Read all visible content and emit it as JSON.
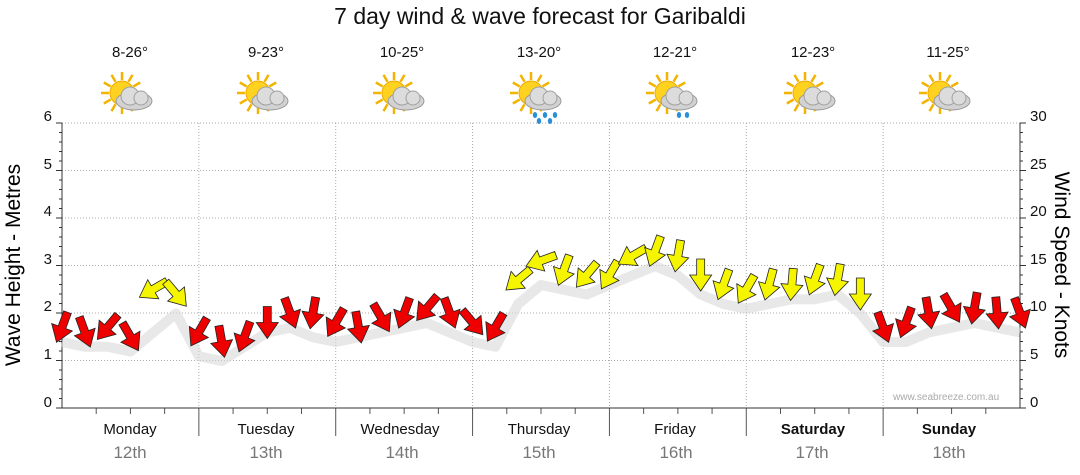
{
  "chart_data": {
    "type": "line",
    "title": "7 day wind & wave forecast for Garibaldi",
    "ylabel_left": "Wave Height - Metres",
    "ylabel_right": "Wind Speed - Knots",
    "y_left_ticks": [
      "0",
      "1",
      "2",
      "3",
      "4",
      "5",
      "6"
    ],
    "y_right_ticks": [
      "0",
      "5",
      "10",
      "15",
      "20",
      "25",
      "30"
    ],
    "ylim_left": [
      0,
      6
    ],
    "ylim_right": [
      0,
      30
    ],
    "days": [
      {
        "day": "Monday",
        "date": "12th",
        "temp": "8-26°",
        "icon": "partly-cloudy-icon",
        "bold": false
      },
      {
        "day": "Tuesday",
        "date": "13th",
        "temp": "9-23°",
        "icon": "partly-cloudy-icon",
        "bold": false
      },
      {
        "day": "Wednesday",
        "date": "14th",
        "temp": "10-25°",
        "icon": "partly-cloudy-icon",
        "bold": false
      },
      {
        "day": "Thursday",
        "date": "15th",
        "temp": "13-20°",
        "icon": "rain-showers-icon",
        "bold": false
      },
      {
        "day": "Friday",
        "date": "16th",
        "temp": "12-21°",
        "icon": "light-rain-icon",
        "bold": false
      },
      {
        "day": "Saturday",
        "date": "17th",
        "temp": "12-23°",
        "icon": "partly-cloudy-icon",
        "bold": true
      },
      {
        "day": "Sunday",
        "date": "18th",
        "temp": "11-25°",
        "icon": "partly-cloudy-icon",
        "bold": true
      }
    ],
    "wind_series": {
      "name": "Wind Speed (knots)",
      "x_hours": [
        0,
        4,
        8,
        12,
        16,
        20,
        24,
        28,
        32,
        36,
        40,
        44,
        48,
        52,
        56,
        60,
        64,
        68,
        72,
        76,
        80,
        84,
        88,
        92,
        96,
        100,
        104,
        108,
        112,
        116,
        120,
        124,
        128,
        132,
        136,
        140,
        144,
        148,
        152,
        156,
        160,
        164,
        168
      ],
      "values": [
        8.5,
        8,
        8.5,
        7.5,
        12.5,
        12,
        8,
        7,
        7.5,
        9,
        10,
        10,
        9,
        8.5,
        9.5,
        10,
        10.5,
        10,
        9,
        8.5,
        13.5,
        15.5,
        14.5,
        14,
        14,
        16,
        16.5,
        16,
        14,
        13,
        12.5,
        13,
        13,
        13.5,
        13.5,
        12,
        8.5,
        9,
        10,
        10.5,
        10.5,
        10,
        10
      ],
      "color_rule": "red below 11 knots, yellow at or above 11 knots"
    },
    "wave_series": {
      "name": "Wave Height (m)",
      "x_hours": [
        0,
        4,
        8,
        12,
        16,
        20,
        24,
        28,
        32,
        36,
        40,
        44,
        48,
        52,
        56,
        60,
        64,
        68,
        72,
        76,
        80,
        84,
        88,
        92,
        96,
        100,
        104,
        108,
        112,
        116,
        120,
        124,
        128,
        132,
        136,
        140,
        144,
        148,
        152,
        156,
        160,
        164,
        168
      ],
      "values": [
        1.6,
        1.5,
        1.5,
        1.4,
        1.8,
        2.2,
        1.3,
        1.2,
        1.5,
        1.8,
        1.9,
        1.7,
        1.6,
        1.7,
        1.8,
        1.9,
        2.0,
        1.8,
        1.6,
        1.5,
        2.4,
        2.8,
        2.7,
        2.6,
        2.8,
        3.0,
        3.2,
        3.0,
        2.6,
        2.4,
        2.3,
        2.4,
        2.5,
        2.5,
        2.6,
        2.2,
        1.6,
        1.6,
        1.8,
        1.9,
        2.0,
        1.9,
        1.8
      ]
    },
    "grid": true,
    "credit": "www.seabreeze.com.au"
  }
}
